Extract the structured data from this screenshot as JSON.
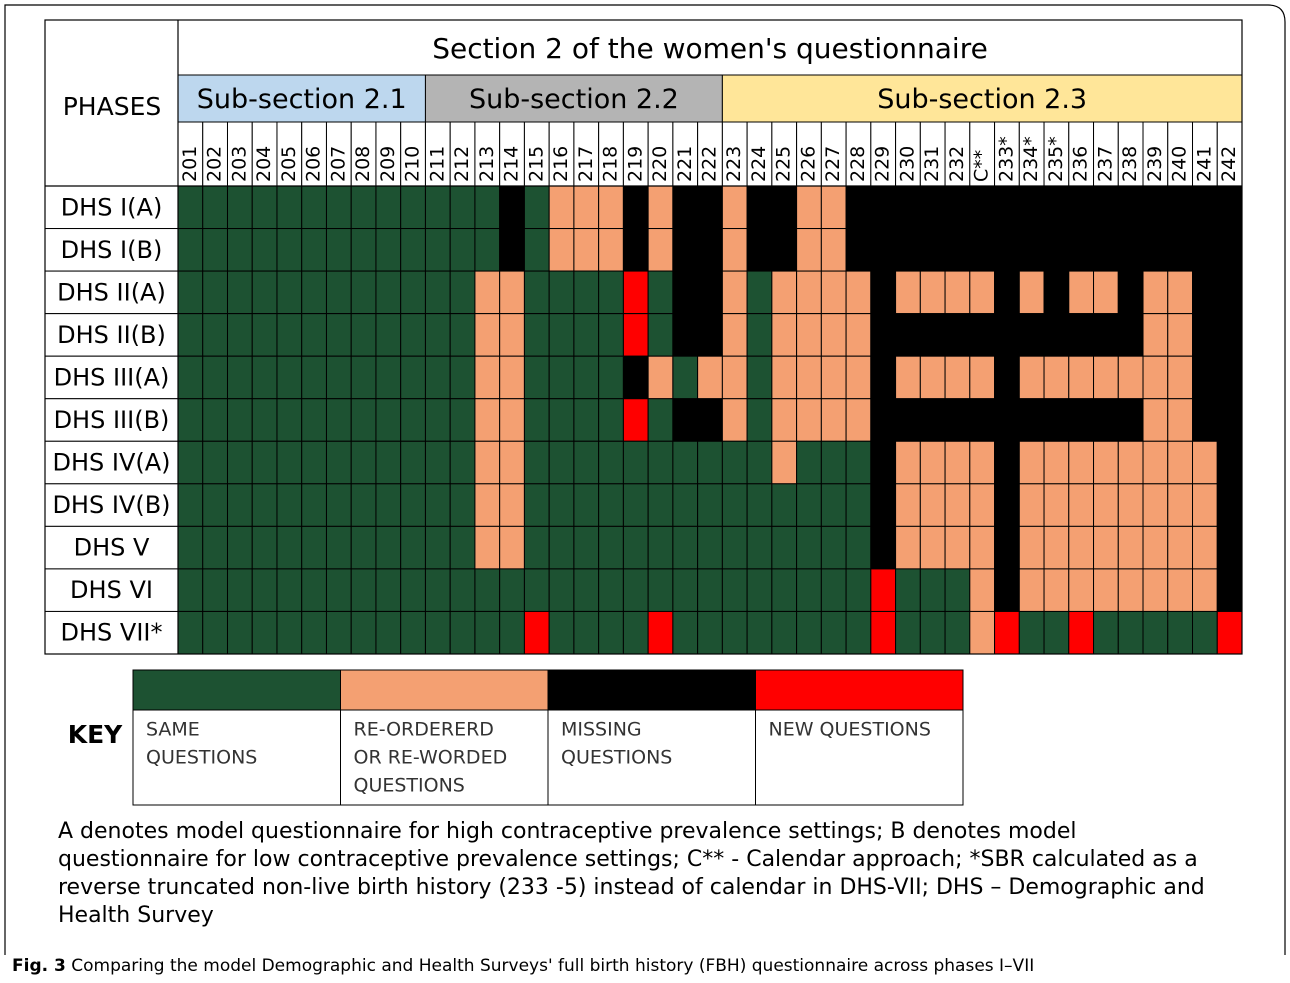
{
  "figure": {
    "title": "Section 2 of the women's questionnaire",
    "phases_header": "PHASES",
    "subsections": [
      {
        "label": "Sub-section 2.1",
        "color": "#bdd7ee",
        "columns": [
          0,
          9
        ]
      },
      {
        "label": "Sub-section 2.2",
        "color": "#b4b4b4",
        "columns": [
          10,
          21
        ]
      },
      {
        "label": "Sub-section 2.3",
        "color": "#ffe699",
        "columns": [
          22,
          42
        ]
      }
    ],
    "columns": [
      "201",
      "202",
      "203",
      "204",
      "205",
      "206",
      "207",
      "208",
      "209",
      "210",
      "211",
      "212",
      "213",
      "214",
      "215",
      "216",
      "217",
      "218",
      "219",
      "220",
      "221",
      "222",
      "223",
      "224",
      "225",
      "226",
      "227",
      "228",
      "229",
      "230",
      "231",
      "232",
      "C**",
      "233*",
      "234*",
      "235*",
      "236",
      "237",
      "238",
      "239",
      "240",
      "241",
      "242"
    ],
    "rows": [
      {
        "label": "DHS I(A)",
        "cells": [
          0,
          0,
          0,
          0,
          0,
          0,
          0,
          0,
          0,
          0,
          0,
          0,
          0,
          2,
          0,
          1,
          1,
          1,
          2,
          1,
          2,
          2,
          1,
          2,
          2,
          1,
          1,
          2,
          2,
          2,
          2,
          2,
          2,
          2,
          2,
          2,
          2,
          2,
          2,
          2,
          2,
          2,
          2
        ]
      },
      {
        "label": "DHS I(B)",
        "cells": [
          0,
          0,
          0,
          0,
          0,
          0,
          0,
          0,
          0,
          0,
          0,
          0,
          0,
          2,
          0,
          1,
          1,
          1,
          2,
          1,
          2,
          2,
          1,
          2,
          2,
          1,
          1,
          2,
          2,
          2,
          2,
          2,
          2,
          2,
          2,
          2,
          2,
          2,
          2,
          2,
          2,
          2,
          2
        ]
      },
      {
        "label": "DHS II(A)",
        "cells": [
          0,
          0,
          0,
          0,
          0,
          0,
          0,
          0,
          0,
          0,
          0,
          0,
          1,
          1,
          0,
          0,
          0,
          0,
          3,
          0,
          2,
          2,
          1,
          0,
          1,
          1,
          1,
          1,
          2,
          1,
          1,
          1,
          1,
          2,
          1,
          2,
          1,
          1,
          2,
          1,
          1,
          2,
          2
        ]
      },
      {
        "label": "DHS II(B)",
        "cells": [
          0,
          0,
          0,
          0,
          0,
          0,
          0,
          0,
          0,
          0,
          0,
          0,
          1,
          1,
          0,
          0,
          0,
          0,
          3,
          0,
          2,
          2,
          1,
          0,
          1,
          1,
          1,
          1,
          2,
          2,
          2,
          2,
          2,
          2,
          2,
          2,
          2,
          2,
          2,
          1,
          1,
          2,
          2
        ]
      },
      {
        "label": "DHS III(A)",
        "cells": [
          0,
          0,
          0,
          0,
          0,
          0,
          0,
          0,
          0,
          0,
          0,
          0,
          1,
          1,
          0,
          0,
          0,
          0,
          2,
          1,
          0,
          1,
          1,
          0,
          1,
          1,
          1,
          1,
          2,
          1,
          1,
          1,
          1,
          2,
          1,
          1,
          1,
          1,
          1,
          1,
          1,
          2,
          2
        ]
      },
      {
        "label": "DHS III(B)",
        "cells": [
          0,
          0,
          0,
          0,
          0,
          0,
          0,
          0,
          0,
          0,
          0,
          0,
          1,
          1,
          0,
          0,
          0,
          0,
          3,
          0,
          2,
          2,
          1,
          0,
          1,
          1,
          1,
          1,
          2,
          2,
          2,
          2,
          2,
          2,
          2,
          2,
          2,
          2,
          2,
          1,
          1,
          2,
          2
        ]
      },
      {
        "label": "DHS IV(A)",
        "cells": [
          0,
          0,
          0,
          0,
          0,
          0,
          0,
          0,
          0,
          0,
          0,
          0,
          1,
          1,
          0,
          0,
          0,
          0,
          0,
          0,
          0,
          0,
          0,
          0,
          1,
          0,
          0,
          0,
          2,
          1,
          1,
          1,
          1,
          2,
          1,
          1,
          1,
          1,
          1,
          1,
          1,
          1,
          2
        ]
      },
      {
        "label": "DHS IV(B)",
        "cells": [
          0,
          0,
          0,
          0,
          0,
          0,
          0,
          0,
          0,
          0,
          0,
          0,
          1,
          1,
          0,
          0,
          0,
          0,
          0,
          0,
          0,
          0,
          0,
          0,
          0,
          0,
          0,
          0,
          2,
          1,
          1,
          1,
          1,
          2,
          1,
          1,
          1,
          1,
          1,
          1,
          1,
          1,
          2
        ]
      },
      {
        "label": "DHS V",
        "cells": [
          0,
          0,
          0,
          0,
          0,
          0,
          0,
          0,
          0,
          0,
          0,
          0,
          1,
          1,
          0,
          0,
          0,
          0,
          0,
          0,
          0,
          0,
          0,
          0,
          0,
          0,
          0,
          0,
          2,
          1,
          1,
          1,
          1,
          2,
          1,
          1,
          1,
          1,
          1,
          1,
          1,
          1,
          2
        ]
      },
      {
        "label": "DHS VI",
        "cells": [
          0,
          0,
          0,
          0,
          0,
          0,
          0,
          0,
          0,
          0,
          0,
          0,
          0,
          0,
          0,
          0,
          0,
          0,
          0,
          0,
          0,
          0,
          0,
          0,
          0,
          0,
          0,
          0,
          3,
          0,
          0,
          0,
          1,
          2,
          1,
          1,
          1,
          1,
          1,
          1,
          1,
          1,
          2
        ]
      },
      {
        "label": "DHS VII*",
        "cells": [
          0,
          0,
          0,
          0,
          0,
          0,
          0,
          0,
          0,
          0,
          0,
          0,
          0,
          0,
          3,
          0,
          0,
          0,
          0,
          3,
          0,
          0,
          0,
          0,
          0,
          0,
          0,
          0,
          3,
          0,
          0,
          0,
          1,
          3,
          0,
          0,
          3,
          0,
          0,
          0,
          0,
          0,
          3
        ]
      }
    ],
    "key_title": "KEY",
    "key": [
      {
        "color": "#1d5232",
        "label": [
          "SAME",
          "QUESTIONS"
        ]
      },
      {
        "color": "#f4a072",
        "label": [
          "RE-ORDERERD",
          "OR RE-WORDED",
          "QUESTIONS"
        ]
      },
      {
        "color": "#000000",
        "label": [
          "MISSING",
          "QUESTIONS"
        ]
      },
      {
        "color": "#ff0000",
        "label": [
          "NEW QUESTIONS"
        ]
      }
    ],
    "notes": "A denotes model questionnaire for high contraceptive prevalence settings; B denotes model questionnaire for low contraceptive prevalence settings; C** - Calendar approach; *SBR calculated as a reverse truncated non-live birth history (233 -5) instead of calendar in DHS-VII; DHS – Demographic and Health Survey",
    "fig_label": "Fig. 3",
    "caption": "Comparing the model Demographic and Health Surveys' full birth history (FBH) questionnaire across phases I–VII"
  }
}
